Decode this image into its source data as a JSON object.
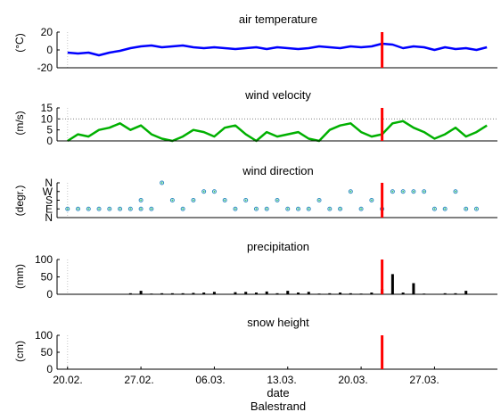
{
  "chart_data": [
    {
      "type": "line",
      "title": "air temperature",
      "ylabel": "(°C)",
      "ylim": [
        -20,
        20
      ],
      "yticks": [
        "20",
        "0",
        "-20"
      ],
      "x_range": [
        "2021-02-19",
        "2021-04-02"
      ],
      "event_date": "2021-03-22",
      "series": [
        {
          "color": "#0000ff",
          "x": [
            "2021-02-20",
            "2021-02-21",
            "2021-02-22",
            "2021-02-23",
            "2021-02-24",
            "2021-02-25",
            "2021-02-26",
            "2021-02-27",
            "2021-02-28",
            "2021-03-01",
            "2021-03-02",
            "2021-03-03",
            "2021-03-04",
            "2021-03-05",
            "2021-03-06",
            "2021-03-07",
            "2021-03-08",
            "2021-03-09",
            "2021-03-10",
            "2021-03-11",
            "2021-03-12",
            "2021-03-13",
            "2021-03-14",
            "2021-03-15",
            "2021-03-16",
            "2021-03-17",
            "2021-03-18",
            "2021-03-19",
            "2021-03-20",
            "2021-03-21",
            "2021-03-22",
            "2021-03-23",
            "2021-03-24",
            "2021-03-25",
            "2021-03-26",
            "2021-03-27",
            "2021-03-28",
            "2021-03-29",
            "2021-03-30",
            "2021-03-31",
            "2021-04-01"
          ],
          "values": [
            -3,
            -4,
            -3,
            -6,
            -3,
            -1,
            2,
            4,
            5,
            3,
            4,
            5,
            3,
            2,
            3,
            2,
            1,
            2,
            3,
            1,
            3,
            2,
            1,
            2,
            4,
            3,
            2,
            4,
            3,
            4,
            7,
            6,
            2,
            4,
            3,
            0,
            3,
            1,
            2,
            0,
            3
          ]
        }
      ]
    },
    {
      "type": "line",
      "title": "wind velocity",
      "ylabel": "(m/s)",
      "ylim": [
        0,
        15
      ],
      "yticks": [
        "15",
        "10",
        "5",
        "0"
      ],
      "reference_line": 10,
      "event_date": "2021-03-22",
      "series": [
        {
          "color": "#00b000",
          "x": [
            "2021-02-20",
            "2021-02-21",
            "2021-02-22",
            "2021-02-23",
            "2021-02-24",
            "2021-02-25",
            "2021-02-26",
            "2021-02-27",
            "2021-02-28",
            "2021-03-01",
            "2021-03-02",
            "2021-03-03",
            "2021-03-04",
            "2021-03-05",
            "2021-03-06",
            "2021-03-07",
            "2021-03-08",
            "2021-03-09",
            "2021-03-10",
            "2021-03-11",
            "2021-03-12",
            "2021-03-13",
            "2021-03-14",
            "2021-03-15",
            "2021-03-16",
            "2021-03-17",
            "2021-03-18",
            "2021-03-19",
            "2021-03-20",
            "2021-03-21",
            "2021-03-22",
            "2021-03-23",
            "2021-03-24",
            "2021-03-25",
            "2021-03-26",
            "2021-03-27",
            "2021-03-28",
            "2021-03-29",
            "2021-03-30",
            "2021-03-31",
            "2021-04-01"
          ],
          "values": [
            0,
            3,
            2,
            5,
            6,
            8,
            5,
            7,
            3,
            1,
            0,
            2,
            5,
            4,
            2,
            6,
            7,
            3,
            0,
            4,
            2,
            3,
            4,
            1,
            0,
            5,
            7,
            8,
            4,
            2,
            3,
            8,
            9,
            6,
            4,
            1,
            3,
            6,
            2,
            4,
            7
          ]
        }
      ]
    },
    {
      "type": "scatter",
      "title": "wind direction",
      "ylabel": "(degr.)",
      "yticks": [
        "N",
        "W",
        "S",
        "E",
        "N"
      ],
      "event_date": "2021-03-22",
      "series": [
        {
          "color": "#2a8ac0",
          "points": [
            [
              "2021-02-20",
              "E"
            ],
            [
              "2021-02-21",
              "E"
            ],
            [
              "2021-02-22",
              "E"
            ],
            [
              "2021-02-23",
              "E"
            ],
            [
              "2021-02-24",
              "E"
            ],
            [
              "2021-02-25",
              "E"
            ],
            [
              "2021-02-26",
              "E"
            ],
            [
              "2021-02-27",
              "E"
            ],
            [
              "2021-02-27",
              "S"
            ],
            [
              "2021-02-28",
              "E"
            ],
            [
              "2021-03-01",
              "N"
            ],
            [
              "2021-03-02",
              "S"
            ],
            [
              "2021-03-03",
              "E"
            ],
            [
              "2021-03-04",
              "S"
            ],
            [
              "2021-03-05",
              "W"
            ],
            [
              "2021-03-06",
              "W"
            ],
            [
              "2021-03-07",
              "S"
            ],
            [
              "2021-03-08",
              "E"
            ],
            [
              "2021-03-09",
              "S"
            ],
            [
              "2021-03-10",
              "E"
            ],
            [
              "2021-03-11",
              "E"
            ],
            [
              "2021-03-12",
              "S"
            ],
            [
              "2021-03-13",
              "E"
            ],
            [
              "2021-03-14",
              "E"
            ],
            [
              "2021-03-15",
              "E"
            ],
            [
              "2021-03-16",
              "S"
            ],
            [
              "2021-03-17",
              "E"
            ],
            [
              "2021-03-18",
              "E"
            ],
            [
              "2021-03-19",
              "W"
            ],
            [
              "2021-03-20",
              "E"
            ],
            [
              "2021-03-21",
              "S"
            ],
            [
              "2021-03-22",
              "E"
            ],
            [
              "2021-03-23",
              "W"
            ],
            [
              "2021-03-24",
              "W"
            ],
            [
              "2021-03-25",
              "W"
            ],
            [
              "2021-03-26",
              "W"
            ],
            [
              "2021-03-27",
              "E"
            ],
            [
              "2021-03-28",
              "E"
            ],
            [
              "2021-03-29",
              "W"
            ],
            [
              "2021-03-30",
              "E"
            ],
            [
              "2021-03-31",
              "E"
            ]
          ]
        }
      ]
    },
    {
      "type": "bar",
      "title": "precipitation",
      "ylabel": "(mm)",
      "ylim": [
        0,
        100
      ],
      "yticks": [
        "100",
        "50",
        "0"
      ],
      "event_date": "2021-03-22",
      "series": [
        {
          "color": "#000000",
          "x": [
            "2021-02-25",
            "2021-02-26",
            "2021-02-27",
            "2021-02-28",
            "2021-03-01",
            "2021-03-02",
            "2021-03-03",
            "2021-03-04",
            "2021-03-05",
            "2021-03-06",
            "2021-03-07",
            "2021-03-08",
            "2021-03-09",
            "2021-03-10",
            "2021-03-11",
            "2021-03-12",
            "2021-03-13",
            "2021-03-14",
            "2021-03-15",
            "2021-03-16",
            "2021-03-17",
            "2021-03-18",
            "2021-03-19",
            "2021-03-20",
            "2021-03-21",
            "2021-03-22",
            "2021-03-23",
            "2021-03-24",
            "2021-03-25",
            "2021-03-26",
            "2021-03-27",
            "2021-03-28",
            "2021-03-29",
            "2021-03-30"
          ],
          "values": [
            1,
            3,
            10,
            2,
            3,
            3,
            3,
            4,
            5,
            7,
            1,
            6,
            7,
            5,
            8,
            3,
            10,
            5,
            7,
            2,
            3,
            5,
            3,
            2,
            5,
            15,
            58,
            5,
            32,
            2,
            1,
            3,
            3,
            10
          ]
        }
      ]
    },
    {
      "type": "bar",
      "title": "snow height",
      "ylabel": "(cm)",
      "ylim": [
        0,
        100
      ],
      "yticks": [
        "100",
        "50",
        "0"
      ],
      "event_date": "2021-03-22",
      "series": []
    }
  ],
  "xticks": [
    "20.02.",
    "27.02.",
    "06.03.",
    "13.03.",
    "20.03.",
    "27.03."
  ],
  "xlabel": "date",
  "footer": "Balestrand",
  "colors": {
    "event_line": "#ff0000",
    "reference_line": "#808080"
  }
}
